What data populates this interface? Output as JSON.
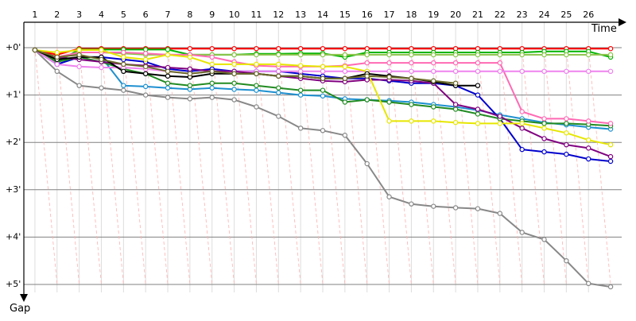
{
  "chart_data": {
    "type": "line",
    "xlabel": "Time",
    "ylabel": "Gap",
    "x_ticks": [
      "1",
      "2",
      "3",
      "4",
      "5",
      "6",
      "7",
      "8",
      "9",
      "10",
      "11",
      "12",
      "13",
      "14",
      "15",
      "16",
      "17",
      "18",
      "19",
      "20",
      "21",
      "22",
      "23",
      "24",
      "25",
      "26"
    ],
    "y_ticks": [
      "+0'",
      "+1'",
      "+2'",
      "+3'",
      "+4'",
      "+5'"
    ],
    "xlim": [
      0.5,
      27.5
    ],
    "ylim": [
      0,
      5
    ],
    "grid": true,
    "series": [
      {
        "color": "#ff0000",
        "values": [
          0.05,
          0.15,
          0.02,
          0.02,
          0.02,
          0.02,
          0.02,
          0.02,
          0.02,
          0.02,
          0.02,
          0.02,
          0.02,
          0.02,
          0.02,
          0.02,
          0.02,
          0.02,
          0.02,
          0.02,
          0.02,
          0.02,
          0.02,
          0.02,
          0.02,
          0.02,
          0.02
        ]
      },
      {
        "color": "#00b400",
        "values": [
          0.05,
          0.3,
          0.04,
          0.04,
          0.04,
          0.04,
          0.04,
          0.15,
          0.15,
          0.15,
          0.13,
          0.13,
          0.12,
          0.12,
          0.2,
          0.1,
          0.1,
          0.1,
          0.1,
          0.1,
          0.1,
          0.1,
          0.1,
          0.08,
          0.08,
          0.08,
          0.2
        ]
      },
      {
        "color": "#8bc34a",
        "values": [
          0.05,
          0.25,
          0.1,
          0.1,
          0.12,
          0.15,
          0.15,
          0.15,
          0.15,
          0.15,
          0.15,
          0.15,
          0.15,
          0.15,
          0.15,
          0.15,
          0.15,
          0.15,
          0.15,
          0.15,
          0.15,
          0.15,
          0.15,
          0.15,
          0.15,
          0.15,
          0.15
        ]
      },
      {
        "color": "#1e90d0",
        "values": [
          0.05,
          0.35,
          0.2,
          0.2,
          0.8,
          0.82,
          0.85,
          0.88,
          0.85,
          0.88,
          0.9,
          0.95,
          1.0,
          1.02,
          1.08,
          1.1,
          1.12,
          1.15,
          1.2,
          1.25,
          1.32,
          1.42,
          1.5,
          1.58,
          1.63,
          1.68,
          1.72
        ]
      },
      {
        "color": "#0000cd",
        "values": [
          0.05,
          0.35,
          0.2,
          0.2,
          0.25,
          0.3,
          0.45,
          0.5,
          0.45,
          0.5,
          0.5,
          0.5,
          0.55,
          0.6,
          0.65,
          0.65,
          0.7,
          0.75,
          0.75,
          0.8,
          1.0,
          1.5,
          2.15,
          2.2,
          2.25,
          2.35,
          2.4
        ]
      },
      {
        "color": "#228b22",
        "values": [
          0.05,
          0.3,
          0.2,
          0.3,
          0.45,
          0.55,
          0.75,
          0.8,
          0.75,
          0.75,
          0.8,
          0.85,
          0.9,
          0.9,
          1.15,
          1.1,
          1.15,
          1.2,
          1.25,
          1.3,
          1.4,
          1.5,
          1.55,
          1.6,
          1.6,
          1.62,
          1.65
        ]
      },
      {
        "color": "#888888",
        "values": [
          0.05,
          0.5,
          0.8,
          0.85,
          0.9,
          1.0,
          1.05,
          1.08,
          1.05,
          1.1,
          1.25,
          1.45,
          1.7,
          1.75,
          1.85,
          2.45,
          3.15,
          3.3,
          3.35,
          3.38,
          3.4,
          3.5,
          3.9,
          4.05,
          4.5,
          4.98,
          5.05
        ]
      },
      {
        "color": "#ff69b4",
        "values": [
          0.05,
          0.2,
          0.1,
          0.1,
          0.1,
          0.12,
          0.15,
          0.15,
          0.2,
          0.3,
          0.38,
          0.4,
          0.4,
          0.4,
          0.38,
          0.32,
          0.32,
          0.32,
          0.32,
          0.32,
          0.32,
          0.32,
          1.35,
          1.5,
          1.5,
          1.55,
          1.6
        ]
      },
      {
        "color": "#ee82ee",
        "values": [
          0.05,
          0.35,
          0.4,
          0.42,
          0.42,
          0.45,
          0.5,
          0.55,
          0.5,
          0.5,
          0.5,
          0.5,
          0.5,
          0.5,
          0.5,
          0.5,
          0.5,
          0.5,
          0.5,
          0.5,
          0.5,
          0.5,
          0.5,
          0.5,
          0.5,
          0.5,
          0.5
        ]
      },
      {
        "color": "#800080",
        "values": [
          0.05,
          0.2,
          0.25,
          0.3,
          0.35,
          0.38,
          0.42,
          0.45,
          0.5,
          0.5,
          0.55,
          0.6,
          0.65,
          0.7,
          0.72,
          0.68,
          0.68,
          0.7,
          0.75,
          1.2,
          1.3,
          1.45,
          1.7,
          1.92,
          2.05,
          2.12,
          2.3
        ]
      },
      {
        "color": "#e6e600",
        "values": [
          0.05,
          0.1,
          0.05,
          0.05,
          0.2,
          0.25,
          0.15,
          0.2,
          0.35,
          0.35,
          0.35,
          0.35,
          0.38,
          0.4,
          0.4,
          0.5,
          1.55,
          1.55,
          1.55,
          1.58,
          1.6,
          1.6,
          1.6,
          1.7,
          1.8,
          1.95,
          2.05
        ]
      },
      {
        "color": "#000000",
        "values": [
          0.05,
          0.25,
          0.2,
          0.2,
          0.5,
          0.55,
          0.6,
          0.62,
          0.55,
          0.55,
          0.55,
          0.6,
          0.6,
          0.65,
          0.65,
          0.55,
          0.6,
          0.65,
          0.72,
          0.8,
          0.8,
          null,
          null,
          null,
          null,
          null,
          null
        ]
      },
      {
        "color": "#6b6b2a",
        "values": [
          0.05,
          0.2,
          0.15,
          0.25,
          0.35,
          0.4,
          0.5,
          0.55,
          0.5,
          0.55,
          0.55,
          0.6,
          0.6,
          0.65,
          0.65,
          0.6,
          0.62,
          0.65,
          0.7,
          0.75,
          null,
          null,
          null,
          null,
          null,
          null,
          null
        ]
      }
    ]
  }
}
